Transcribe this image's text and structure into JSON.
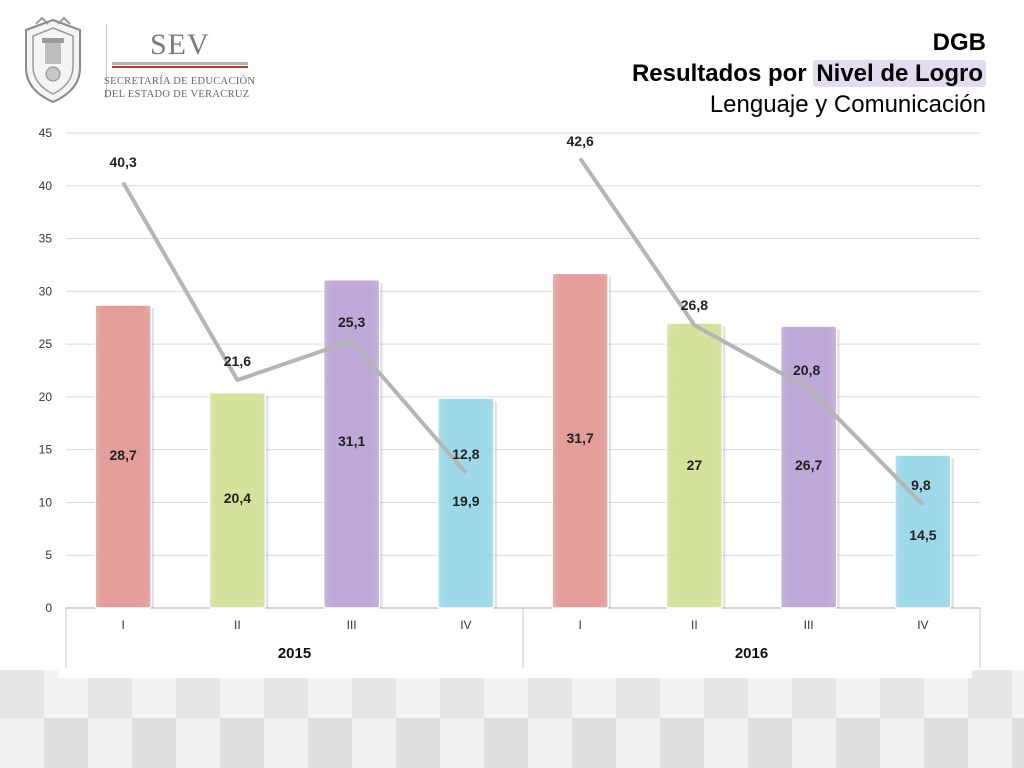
{
  "header": {
    "logo_brand": "SEV",
    "logo_line1": "SECRETARÍA DE EDUCACIÓN",
    "logo_line2": "DEL ESTADO DE VERACRUZ",
    "title_line1": "DGB",
    "title_line2_prefix": "Resultados por ",
    "title_line2_highlight": "Nivel de Logro",
    "title_line3": "Lenguaje y Comunicación"
  },
  "chart_data": {
    "type": "bar",
    "categories": [
      "I",
      "II",
      "III",
      "IV",
      "I",
      "II",
      "III",
      "IV"
    ],
    "groups": [
      {
        "label": "2015",
        "categories": [
          0,
          1,
          2,
          3
        ]
      },
      {
        "label": "2016",
        "categories": [
          4,
          5,
          6,
          7
        ]
      }
    ],
    "series": [
      {
        "kind": "bar",
        "values": [
          28.7,
          20.4,
          31.1,
          19.9,
          31.7,
          27,
          26.7,
          14.5
        ],
        "labels": [
          "28,7",
          "20,4",
          "31,1",
          "19,9",
          "31,7",
          "27",
          "26,7",
          "14,5"
        ],
        "colors": [
          "#e49e9a",
          "#d3e39b",
          "#bfa9d8",
          "#9ed9ea",
          "#e49e9a",
          "#d3e39b",
          "#bfa9d8",
          "#9ed9ea"
        ]
      },
      {
        "kind": "line",
        "color": "#b5b5b5",
        "segments": [
          [
            0,
            1,
            2,
            3
          ],
          [
            4,
            5,
            6,
            7
          ]
        ],
        "values": [
          40.3,
          21.6,
          25.3,
          12.8,
          42.6,
          26.8,
          20.8,
          9.8
        ],
        "labels": [
          "40,3",
          "21,6",
          "25,3",
          "12,8",
          "42,6",
          "26,8",
          "20,8",
          "9,8"
        ]
      }
    ],
    "y_ticks": [
      "0",
      "5",
      "10",
      "15",
      "20",
      "25",
      "30",
      "35",
      "40",
      "45"
    ],
    "ylim": [
      0,
      45
    ],
    "grid": true
  }
}
